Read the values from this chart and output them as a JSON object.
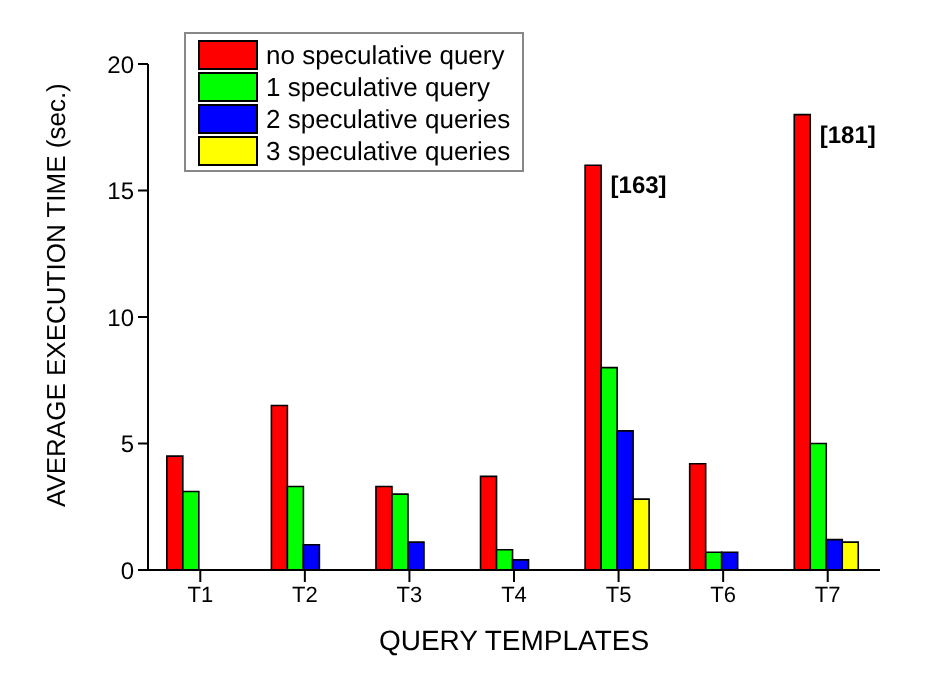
{
  "chart_data": {
    "type": "bar",
    "xlabel": "QUERY TEMPLATES",
    "ylabel": "AVERAGE EXECUTION TIME (sec.)",
    "categories": [
      "T1",
      "T2",
      "T3",
      "T4",
      "T5",
      "T6",
      "T7"
    ],
    "series": [
      {
        "name": "no speculative query",
        "color": "#ff0000",
        "values": [
          4.5,
          6.5,
          3.3,
          3.7,
          16,
          4.2,
          18
        ]
      },
      {
        "name": "1 speculative query",
        "color": "#00ff00",
        "values": [
          3.1,
          3.3,
          3.0,
          0.8,
          8.0,
          0.7,
          5.0
        ]
      },
      {
        "name": "2 speculative queries",
        "color": "#0000ff",
        "values": [
          null,
          1.0,
          1.1,
          0.4,
          5.5,
          0.7,
          1.2
        ]
      },
      {
        "name": "3 speculative queries",
        "color": "#ffff00",
        "values": [
          null,
          null,
          null,
          null,
          2.8,
          null,
          1.1
        ]
      }
    ],
    "ylim": [
      0,
      20
    ],
    "yticks": [
      0,
      5,
      10,
      15,
      20
    ],
    "grid": false,
    "legend": "top left",
    "annotations": [
      "[163]",
      "[181]"
    ]
  }
}
